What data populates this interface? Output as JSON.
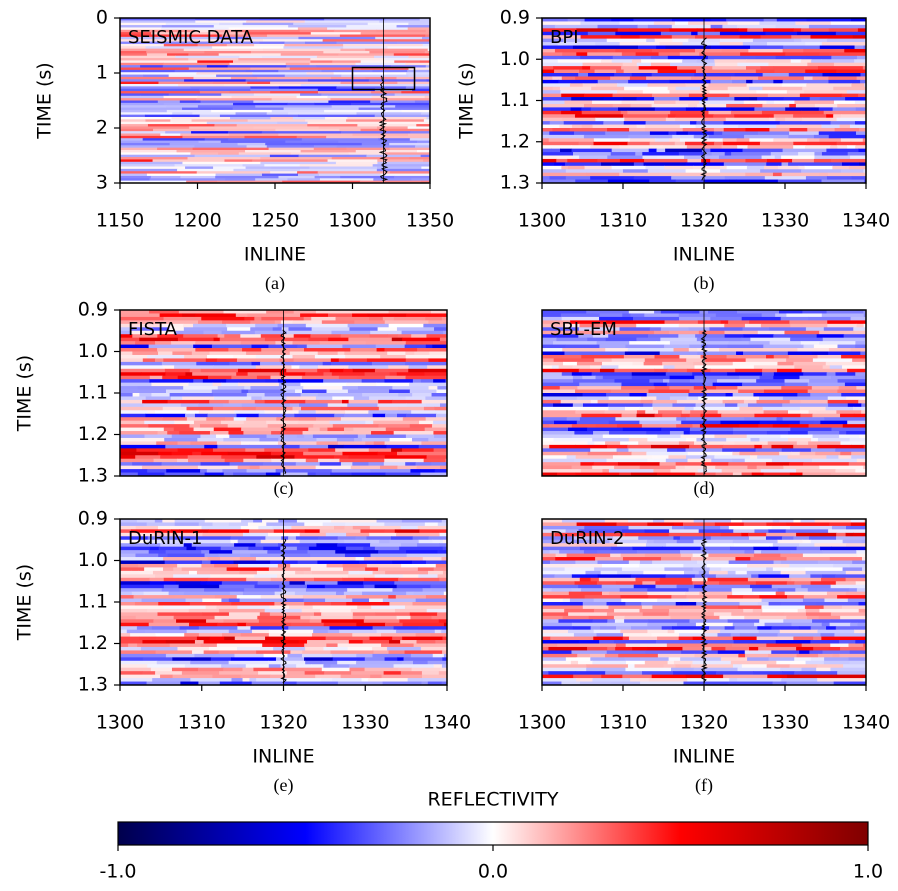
{
  "chart_data": [
    {
      "type": "heatmap",
      "annotation": "SEISMIC DATA",
      "caption": "(a)",
      "xlabel": "INLINE",
      "ylabel": "TIME (s)",
      "xlim": [
        1150,
        1350
      ],
      "xticks": [
        1150,
        1200,
        1250,
        1300,
        1350
      ],
      "ylim": [
        3,
        0
      ],
      "yticks": [
        0,
        1,
        2,
        3
      ],
      "well_inline": 1320,
      "zoom_box": {
        "xlim": [
          1300,
          1340
        ],
        "ylim": [
          0.9,
          1.3
        ]
      }
    },
    {
      "type": "heatmap",
      "annotation": "BPI",
      "caption": "(b)",
      "xlabel": "INLINE",
      "ylabel": "TIME (s)",
      "xlim": [
        1300,
        1340
      ],
      "xticks": [
        1300,
        1310,
        1320,
        1330,
        1340
      ],
      "ylim": [
        1.3,
        0.9
      ],
      "yticks": [
        0.9,
        {
          "value": 1,
          "label": "1.0"
        },
        1.1,
        1.2,
        1.3
      ],
      "well_inline": 1320
    },
    {
      "type": "heatmap",
      "annotation": "FISTA",
      "caption": "(c)",
      "ylabel": "TIME (s)",
      "xlim": [
        1300,
        1340
      ],
      "ylim": [
        1.3,
        0.9
      ],
      "yticks": [
        0.9,
        {
          "value": 1,
          "label": "1.0"
        },
        1.1,
        1.2,
        1.3
      ],
      "well_inline": 1320
    },
    {
      "type": "heatmap",
      "annotation": "SBL-EM",
      "caption": "(d)",
      "xlim": [
        1300,
        1340
      ],
      "ylim": [
        1.3,
        0.9
      ],
      "well_inline": 1320
    },
    {
      "type": "heatmap",
      "annotation": "DuRIN-1",
      "caption": "(e)",
      "xlabel": "INLINE",
      "ylabel": "TIME (s)",
      "xlim": [
        1300,
        1340
      ],
      "xticks": [
        1300,
        1310,
        1320,
        1330,
        1340
      ],
      "ylim": [
        1.3,
        0.9
      ],
      "yticks": [
        0.9,
        {
          "value": 1,
          "label": "1.0"
        },
        1.1,
        1.2,
        1.3
      ],
      "well_inline": 1320
    },
    {
      "type": "heatmap",
      "annotation": "DuRIN-2",
      "caption": "(f)",
      "xlabel": "INLINE",
      "xlim": [
        1300,
        1340
      ],
      "xticks": [
        1300,
        1310,
        1320,
        1330,
        1340
      ],
      "ylim": [
        1.3,
        0.9
      ],
      "well_inline": 1320
    },
    {
      "type": "colorbar",
      "title": "REFLECTIVITY",
      "xlim": [
        -1,
        1
      ],
      "xticks": [
        {
          "value": -1,
          "label": "-1.0"
        },
        {
          "value": 0,
          "label": "0.0"
        },
        {
          "value": 1,
          "label": "1.0"
        }
      ],
      "colors": [
        "#00004c",
        "#0000ff",
        "#ffffff",
        "#ff0000",
        "#7f0000"
      ]
    }
  ]
}
